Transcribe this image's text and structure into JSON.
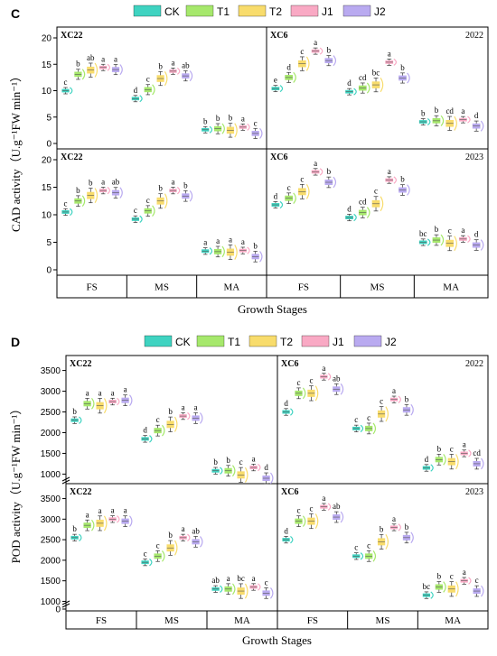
{
  "groups": [
    "CK",
    "T1",
    "T2",
    "J1",
    "J2"
  ],
  "colors": {
    "CK": "#3fd3c1",
    "T1": "#a6e86c",
    "T2": "#f8dc6c",
    "J1": "#f9a9c4",
    "J2": "#b9aaf0"
  },
  "chart_data": [
    {
      "panel_label": "C",
      "type": "box",
      "ylabel": "CAD activity（U.g⁻¹FW min⁻¹）",
      "xlabel": "Growth Stages",
      "stages": [
        "FS",
        "MS",
        "MA"
      ],
      "yticks": [
        0,
        5,
        10,
        15,
        20
      ],
      "top_ylim": [
        0,
        20
      ],
      "bottom_ylim": [
        0,
        20
      ],
      "subplots": [
        {
          "title": "XC22",
          "year": "",
          "data": [
            {
              "stage": "FS",
              "values": [
                10.0,
                13.1,
                13.9,
                14.4,
                14.0
              ],
              "letters": [
                "c",
                "b",
                "ab",
                "a",
                "a"
              ]
            },
            {
              "stage": "MS",
              "values": [
                8.5,
                10.2,
                12.3,
                13.7,
                12.8
              ],
              "letters": [
                "d",
                "c",
                "b",
                "a",
                "ab"
              ]
            },
            {
              "stage": "MA",
              "values": [
                2.6,
                2.8,
                2.5,
                3.1,
                1.9
              ],
              "letters": [
                "b",
                "b",
                "b",
                "a",
                "c"
              ]
            }
          ]
        },
        {
          "title": "XC6",
          "year": "2022",
          "data": [
            {
              "stage": "FS",
              "values": [
                10.4,
                12.5,
                15.1,
                17.5,
                15.7
              ],
              "letters": [
                "e",
                "d",
                "c",
                "a",
                "b"
              ]
            },
            {
              "stage": "MS",
              "values": [
                9.8,
                10.5,
                11.1,
                15.4,
                12.4
              ],
              "letters": [
                "d",
                "cd",
                "bc",
                "a",
                "b"
              ]
            },
            {
              "stage": "MA",
              "values": [
                4.1,
                4.3,
                3.8,
                4.5,
                3.3
              ],
              "letters": [
                "b",
                "b",
                "cd",
                "a",
                "d"
              ]
            }
          ]
        },
        {
          "title": "XC22",
          "year": "",
          "data": [
            {
              "stage": "FS",
              "values": [
                10.5,
                12.5,
                13.5,
                14.4,
                14.0
              ],
              "letters": [
                "c",
                "b",
                "b",
                "a",
                "ab"
              ]
            },
            {
              "stage": "MS",
              "values": [
                9.2,
                10.7,
                12.5,
                14.4,
                13.4
              ],
              "letters": [
                "c",
                "c",
                "b",
                "a",
                "b"
              ]
            },
            {
              "stage": "MA",
              "values": [
                3.4,
                3.3,
                3.2,
                3.5,
                2.4
              ],
              "letters": [
                "a",
                "a",
                "a",
                "a",
                "b"
              ]
            }
          ]
        },
        {
          "title": "XC6",
          "year": "2023",
          "data": [
            {
              "stage": "FS",
              "values": [
                11.8,
                13.0,
                14.2,
                17.8,
                15.9
              ],
              "letters": [
                "d",
                "c",
                "c",
                "a",
                "b"
              ]
            },
            {
              "stage": "MS",
              "values": [
                9.5,
                10.4,
                12.0,
                16.3,
                14.5
              ],
              "letters": [
                "d",
                "cd",
                "c",
                "a",
                "b"
              ]
            },
            {
              "stage": "MA",
              "values": [
                5.0,
                5.4,
                4.8,
                5.6,
                4.5
              ],
              "letters": [
                "bc",
                "b",
                "c",
                "a",
                "d"
              ]
            }
          ]
        }
      ]
    },
    {
      "panel_label": "D",
      "type": "box",
      "ylabel": "POD activity（U.g⁻¹FW min⁻¹）",
      "xlabel": "Growth Stages",
      "stages": [
        "FS",
        "MS",
        "MA"
      ],
      "yticks_top": [
        1000,
        1500,
        2000,
        2500,
        3000,
        3500
      ],
      "yticks_bottom": [
        0,
        1000,
        1500,
        2000,
        2500,
        3000,
        3500
      ],
      "top_ylim": [
        900,
        3600
      ],
      "bottom_ylim": [
        900,
        3600
      ],
      "subplots": [
        {
          "title": "XC22",
          "year": "",
          "data": [
            {
              "stage": "FS",
              "values": [
                2300,
                2700,
                2650,
                2750,
                2780
              ],
              "letters": [
                "b",
                "a",
                "a",
                "a",
                "a"
              ]
            },
            {
              "stage": "MS",
              "values": [
                1850,
                2050,
                2200,
                2400,
                2350
              ],
              "letters": [
                "d",
                "c",
                "b",
                "a",
                "a"
              ]
            },
            {
              "stage": "MA",
              "values": [
                1080,
                1080,
                980,
                1160,
                900
              ],
              "letters": [
                "b",
                "b",
                "c",
                "a",
                "d"
              ]
            }
          ]
        },
        {
          "title": "XC6",
          "year": "2022",
          "data": [
            {
              "stage": "FS",
              "values": [
                2500,
                2950,
                2950,
                3350,
                3050
              ],
              "letters": [
                "d",
                "c",
                "c",
                "a",
                "ab"
              ]
            },
            {
              "stage": "MS",
              "values": [
                2100,
                2100,
                2450,
                2800,
                2550
              ],
              "letters": [
                "c",
                "c",
                "c",
                "a",
                "b"
              ]
            },
            {
              "stage": "MA",
              "values": [
                1150,
                1350,
                1300,
                1500,
                1250
              ],
              "letters": [
                "d",
                "b",
                "c",
                "a",
                "cd"
              ]
            }
          ]
        },
        {
          "title": "XC22",
          "year": "",
          "data": [
            {
              "stage": "FS",
              "values": [
                2550,
                2850,
                2900,
                3000,
                2950
              ],
              "letters": [
                "b",
                "a",
                "a",
                "a",
                "a"
              ]
            },
            {
              "stage": "MS",
              "values": [
                1950,
                2100,
                2300,
                2550,
                2450
              ],
              "letters": [
                "c",
                "c",
                "b",
                "a",
                "ab"
              ]
            },
            {
              "stage": "MA",
              "values": [
                1300,
                1300,
                1250,
                1350,
                1200
              ],
              "letters": [
                "ab",
                "a",
                "bc",
                "a",
                "c"
              ]
            }
          ]
        },
        {
          "title": "XC6",
          "year": "2023",
          "data": [
            {
              "stage": "FS",
              "values": [
                2500,
                2950,
                2950,
                3300,
                3050
              ],
              "letters": [
                "d",
                "c",
                "c",
                "a",
                "ab"
              ]
            },
            {
              "stage": "MS",
              "values": [
                2100,
                2100,
                2450,
                2800,
                2550
              ],
              "letters": [
                "c",
                "c",
                "b",
                "a",
                "b"
              ]
            },
            {
              "stage": "MA",
              "values": [
                1150,
                1350,
                1300,
                1500,
                1250
              ],
              "letters": [
                "bc",
                "b",
                "c",
                "a",
                "c"
              ]
            }
          ]
        }
      ]
    }
  ]
}
